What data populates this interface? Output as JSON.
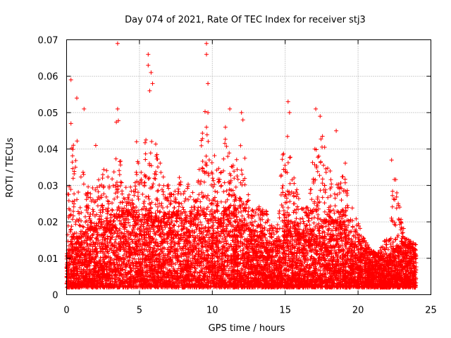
{
  "chart_data": {
    "type": "scatter",
    "title": "Day 074 of 2021, Rate Of TEC Index for receiver stj3",
    "xlabel": "GPS time / hours",
    "ylabel": "ROTI / TECUs",
    "xlim": [
      0,
      25
    ],
    "ylim": [
      0,
      0.07
    ],
    "x_ticks": [
      0,
      5,
      10,
      15,
      20,
      25
    ],
    "y_ticks": [
      0,
      0.01,
      0.02,
      0.03,
      0.04,
      0.05,
      0.06,
      0.07
    ],
    "x_tick_labels": [
      "0",
      "5",
      "10",
      "15",
      "20",
      "25"
    ],
    "y_tick_labels": [
      "0",
      "0.01",
      "0.02",
      "0.03",
      "0.04",
      "0.05",
      "0.06",
      "0.07"
    ],
    "grid": true,
    "marker": "+",
    "color": "#ff0000",
    "series": [
      {
        "name": "ROTI",
        "envelope": {
          "hours": [
            0,
            0.5,
            1,
            1.5,
            2,
            2.5,
            3,
            3.5,
            4,
            4.5,
            5,
            5.5,
            6,
            6.5,
            7,
            7.5,
            8,
            8.5,
            9,
            9.5,
            10,
            10.5,
            11,
            11.5,
            12,
            12.5,
            13,
            13.5,
            14,
            14.5,
            15,
            15.5,
            16,
            16.5,
            17,
            17.5,
            18,
            18.5,
            19,
            19.5,
            20,
            20.5,
            21,
            21.5,
            22,
            22.5,
            23,
            23.5,
            24
          ],
          "dense_upper": [
            0.012,
            0.016,
            0.016,
            0.018,
            0.018,
            0.02,
            0.02,
            0.022,
            0.022,
            0.022,
            0.02,
            0.022,
            0.02,
            0.02,
            0.022,
            0.022,
            0.02,
            0.02,
            0.022,
            0.022,
            0.022,
            0.02,
            0.022,
            0.022,
            0.02,
            0.018,
            0.016,
            0.016,
            0.014,
            0.013,
            0.02,
            0.02,
            0.016,
            0.016,
            0.018,
            0.02,
            0.02,
            0.02,
            0.02,
            0.014,
            0.013,
            0.012,
            0.011,
            0.01,
            0.01,
            0.012,
            0.014,
            0.013,
            0.012
          ],
          "sparse_upper": [
            0.03,
            0.045,
            0.04,
            0.03,
            0.03,
            0.035,
            0.035,
            0.05,
            0.03,
            0.03,
            0.04,
            0.045,
            0.045,
            0.035,
            0.03,
            0.03,
            0.035,
            0.03,
            0.03,
            0.06,
            0.04,
            0.035,
            0.045,
            0.035,
            0.045,
            0.03,
            0.025,
            0.025,
            0.02,
            0.02,
            0.05,
            0.035,
            0.025,
            0.025,
            0.04,
            0.045,
            0.035,
            0.03,
            0.04,
            0.025,
            0.02,
            0.015,
            0.012,
            0.012,
            0.018,
            0.035,
            0.02,
            0.015,
            0.014
          ]
        },
        "notable_points": [
          {
            "x": 0.3,
            "y": 0.059
          },
          {
            "x": 0.3,
            "y": 0.047
          },
          {
            "x": 0.7,
            "y": 0.054
          },
          {
            "x": 1.2,
            "y": 0.051
          },
          {
            "x": 3.5,
            "y": 0.069
          },
          {
            "x": 3.5,
            "y": 0.051
          },
          {
            "x": 5.6,
            "y": 0.066
          },
          {
            "x": 5.6,
            "y": 0.063
          },
          {
            "x": 5.8,
            "y": 0.061
          },
          {
            "x": 5.9,
            "y": 0.058
          },
          {
            "x": 5.7,
            "y": 0.056
          },
          {
            "x": 9.6,
            "y": 0.069
          },
          {
            "x": 9.6,
            "y": 0.066
          },
          {
            "x": 9.7,
            "y": 0.058
          },
          {
            "x": 9.7,
            "y": 0.05
          },
          {
            "x": 9.6,
            "y": 0.046
          },
          {
            "x": 11.2,
            "y": 0.051
          },
          {
            "x": 12.0,
            "y": 0.05
          },
          {
            "x": 15.2,
            "y": 0.053
          },
          {
            "x": 15.3,
            "y": 0.05
          },
          {
            "x": 17.1,
            "y": 0.051
          },
          {
            "x": 17.4,
            "y": 0.049
          },
          {
            "x": 22.3,
            "y": 0.037
          },
          {
            "x": 4.8,
            "y": 0.042
          },
          {
            "x": 18.5,
            "y": 0.045
          },
          {
            "x": 12.1,
            "y": 0.048
          },
          {
            "x": 10.9,
            "y": 0.046
          },
          {
            "x": 2.0,
            "y": 0.041
          }
        ]
      }
    ]
  }
}
